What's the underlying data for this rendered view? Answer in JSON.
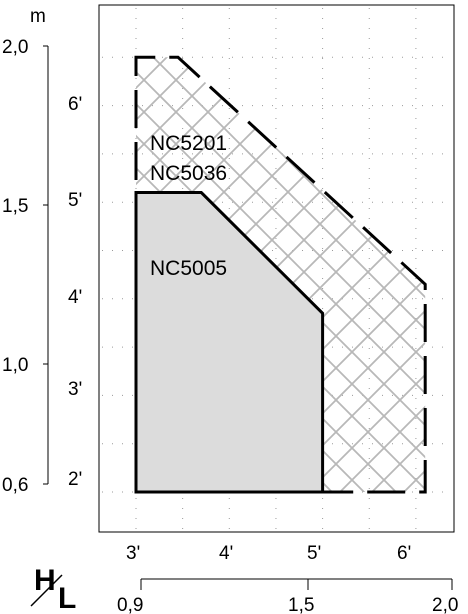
{
  "chart_data": {
    "type": "area",
    "title": "",
    "y_metric_unit": "m",
    "y_metric_ticks": [
      "2,0",
      "1,5",
      "1,0",
      "0,6"
    ],
    "y_feet_ticks": [
      "6'",
      "5'",
      "4'",
      "3'",
      "2'"
    ],
    "x_feet_ticks": [
      "3'",
      "4'",
      "5'",
      "6'"
    ],
    "x_metric_ticks": [
      "0,9",
      "1,5",
      "2,0"
    ],
    "corner_label": {
      "top": "H",
      "bottom": "L"
    },
    "xlim_ft": [
      2.5,
      6.3
    ],
    "ylim_ft": [
      1.6,
      6.8
    ],
    "series": [
      {
        "name": "NC5201",
        "style": "dashed-outline",
        "x_ft": [
          3.0,
          3.0,
          3.45,
          6.1,
          6.1,
          3.0
        ],
        "y_ft": [
          2.0,
          6.5,
          6.5,
          4.15,
          2.0,
          2.0
        ]
      },
      {
        "name": "NC5036",
        "style": "crosshatch",
        "x_ft": [
          3.0,
          3.0,
          3.45,
          6.1,
          6.1,
          5.0,
          5.0,
          3.0
        ],
        "y_ft": [
          2.0,
          6.5,
          6.5,
          4.15,
          2.0,
          2.0,
          3.85,
          2.0
        ]
      },
      {
        "name": "NC5005",
        "style": "gray-fill",
        "x_ft": [
          3.0,
          3.0,
          3.7,
          5.0,
          5.0,
          3.0
        ],
        "y_ft": [
          2.0,
          5.1,
          5.1,
          3.85,
          2.0,
          2.0
        ]
      }
    ],
    "grid": true,
    "colors": {
      "gray_fill": "#dcdcdc",
      "hatch": "#b8b8b8",
      "outline": "#000000",
      "grid_dots": "#9a9a9a"
    }
  }
}
